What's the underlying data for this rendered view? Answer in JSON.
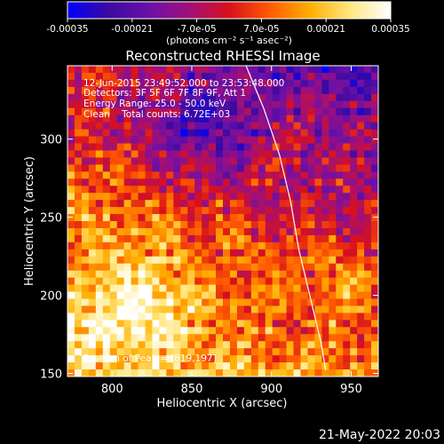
{
  "colorbar": {
    "min": -0.00035,
    "max": 0.00035,
    "tick_labels": [
      "-0.00035",
      "-0.00021",
      "-7.0e-05",
      "7.0e-05",
      "0.00021",
      "0.00035"
    ],
    "unit_label": "(photons cm⁻² s⁻¹ asec⁻²)",
    "stops": [
      "#0000ff",
      "#3b0aa0",
      "#6a10a8",
      "#a0107a",
      "#d8101e",
      "#ff5a00",
      "#ffae00",
      "#ffe880",
      "#ffffff"
    ]
  },
  "chart_data": {
    "type": "heatmap",
    "title": "Reconstructed RHESSI Image",
    "xlabel": "Heliocentric X (arcsec)",
    "ylabel": "Heliocentric Y (arcsec)",
    "xlim": [
      772,
      967
    ],
    "ylim": [
      148,
      347
    ],
    "x_ticks": [
      800,
      850,
      900,
      950
    ],
    "y_ticks": [
      150,
      200,
      250,
      300
    ],
    "limb_curve": [
      [
        884,
        347
      ],
      [
        895,
        320
      ],
      [
        905,
        290
      ],
      [
        912,
        260
      ],
      [
        917,
        230
      ],
      [
        924,
        200
      ],
      [
        931,
        170
      ],
      [
        934,
        152
      ]
    ],
    "annotations": [
      "12-Jun-2015 23:49:52.000 to 23:53:48.000",
      "Detectors: 3F 5F 6F 7F 8F 9F, Att 1",
      "Energy Range: 25.0 - 50.0 keV",
      "Clean    Total counts: 6.72E+03"
    ],
    "peak_label": "Position of Peak = [819,197]",
    "peak": [
      819,
      197
    ]
  },
  "footer": {
    "timestamp": "21-May-2022 20:03"
  }
}
